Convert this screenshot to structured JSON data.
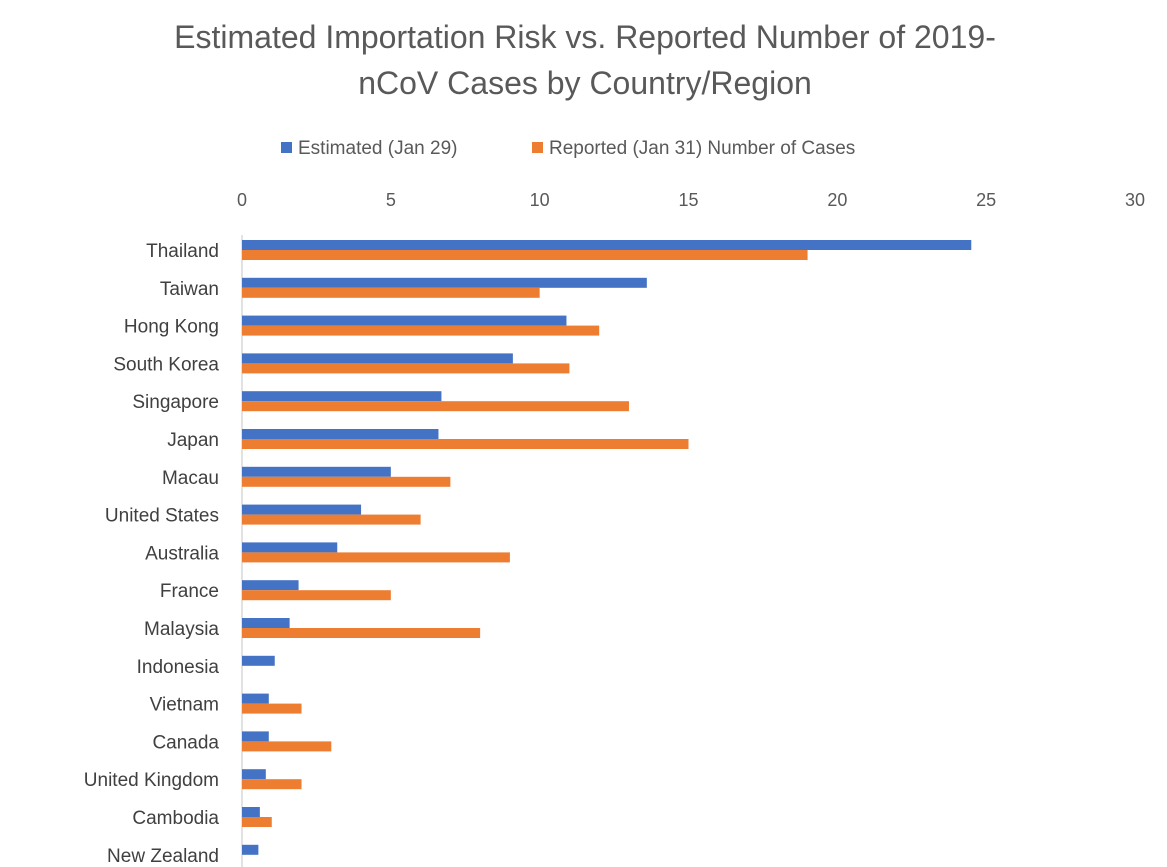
{
  "chart_data": {
    "type": "bar",
    "orientation": "horizontal",
    "title_lines": [
      "Estimated Importation Risk vs. Reported Number of 2019-",
      "nCoV Cases by Country/Region"
    ],
    "legend_position": "top",
    "xaxis_position": "top",
    "xlim": [
      0,
      30
    ],
    "xticks": [
      "0",
      "5",
      "10",
      "15",
      "20",
      "25",
      "30"
    ],
    "gridlines": false,
    "categories": [
      "Thailand",
      "Taiwan",
      "Hong Kong",
      "South Korea",
      "Singapore",
      "Japan",
      "Macau",
      "United States",
      "Australia",
      "France",
      "Malaysia",
      "Indonesia",
      "Vietnam",
      "Canada",
      "United Kingdom",
      "Cambodia",
      "New Zealand"
    ],
    "series": [
      {
        "name": "Estimated (Jan 29)",
        "color": "#4472C4",
        "values": [
          24.5,
          13.6,
          10.9,
          9.1,
          6.7,
          6.6,
          5.0,
          4.0,
          3.2,
          1.9,
          1.6,
          1.1,
          0.9,
          0.9,
          0.8,
          0.6,
          0.55
        ]
      },
      {
        "name": "Reported (Jan 31) Number of Cases",
        "color": "#ED7D31",
        "values": [
          19,
          10,
          12,
          11,
          13,
          15,
          7,
          6,
          9,
          5,
          8,
          0,
          2,
          3,
          2,
          1,
          0
        ]
      }
    ]
  }
}
